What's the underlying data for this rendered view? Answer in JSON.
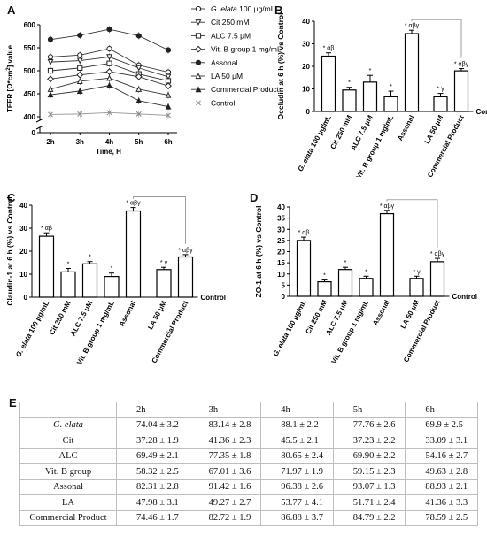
{
  "panel_letters": {
    "a": "A",
    "b": "B",
    "c": "C",
    "d": "D",
    "e": "E"
  },
  "chart_data": [
    {
      "id": "A",
      "type": "line",
      "ylabel_parts": [
        "TEER [",
        "Ω",
        "*cm",
        "2",
        "] value"
      ],
      "xlabel": "Time, H",
      "categories": [
        "2h",
        "3h",
        "4h",
        "5h",
        "6h"
      ],
      "ylim": [
        400,
        600
      ],
      "yticks": [
        "400",
        "450",
        "500",
        "550",
        "600"
      ],
      "ybreak_tick": "0",
      "series": [
        {
          "name": "G. elata 100 μg/mL",
          "name_italic": "G. elata",
          "name_rest": " 100 μg/mL",
          "marker": "open-circle",
          "values": [
            530,
            534,
            548,
            512,
            497
          ]
        },
        {
          "name": "Cit 250 mM",
          "marker": "open-triangle-down",
          "values": [
            519,
            522,
            530,
            506,
            487
          ]
        },
        {
          "name": "ALC 7.5 μM",
          "marker": "open-square",
          "values": [
            500,
            506,
            516,
            493,
            478
          ]
        },
        {
          "name": "Vit. B group 1 mg/mL",
          "marker": "open-diamond",
          "values": [
            482,
            491,
            498,
            487,
            467
          ]
        },
        {
          "name": "Assonal",
          "marker": "filled-circle",
          "values": [
            568,
            577,
            590,
            576,
            545
          ]
        },
        {
          "name": "LA 50 μM",
          "marker": "open-triangle-up",
          "values": [
            460,
            477,
            484,
            460,
            447
          ]
        },
        {
          "name": "Commercial Product",
          "marker": "filled-triangle-up",
          "values": [
            448,
            456,
            468,
            435,
            422
          ]
        },
        {
          "name": "Control",
          "marker": "x",
          "values": [
            405,
            406,
            409,
            406,
            403
          ]
        }
      ]
    },
    {
      "id": "B",
      "type": "bar",
      "ylabel": "Occludin at 6 h (%) vs Control",
      "baseline_label": "Control",
      "ylim": [
        0,
        40
      ],
      "yticks": [
        "0",
        "10",
        "20",
        "30",
        "40"
      ],
      "categories": [
        "G. elata 100 μg/mL",
        "Cit 250 mM",
        "ALC 7.5 μM",
        "Vit. B group 1 mg/mL",
        "Assonal",
        "LA 50 μM",
        "Commercial Product"
      ],
      "values": [
        24.5,
        9.5,
        13,
        6.5,
        34.5,
        6.5,
        18
      ],
      "errors": [
        1.5,
        1.2,
        3,
        2.5,
        1.5,
        1.5,
        1
      ],
      "annotations": [
        "* αβ",
        "*",
        "*",
        "*",
        "* αβγ",
        "* γ",
        "* αβγ"
      ]
    },
    {
      "id": "C",
      "type": "bar",
      "ylabel": "Claudin-1 at 6 h (%) vs Control",
      "baseline_label": "Control",
      "ylim": [
        0,
        40
      ],
      "yticks": [
        "0",
        "10",
        "20",
        "30",
        "40"
      ],
      "categories": [
        "G. elata 100 μg/mL",
        "Cit 250 mM",
        "ALC 7.5 μM",
        "Vit. B group 1 mg/mL",
        "Assonal",
        "LA 50 μM",
        "Commercial Product"
      ],
      "values": [
        26.5,
        11,
        14.5,
        9,
        37.5,
        12,
        17.5
      ],
      "errors": [
        1.5,
        1.5,
        1,
        1.5,
        1.5,
        1,
        1
      ],
      "annotations": [
        "* αβ",
        "*",
        "*",
        "*",
        "* αβγ",
        "* γ",
        "* αβγ"
      ]
    },
    {
      "id": "D",
      "type": "bar",
      "ylabel": "ZO-1 at 6 h (%) vs Control",
      "baseline_label": "Control",
      "ylim": [
        0,
        40
      ],
      "yticks": [
        "0",
        "5",
        "10",
        "15",
        "20",
        "25",
        "30",
        "35",
        "40"
      ],
      "categories": [
        "G. elata 100 μg/mL",
        "Cit 250 mM",
        "ALC 7.5 μM",
        "Vit. B group 1 mg/mL",
        "Assonal",
        "LA 50 μM",
        "Commercial Product"
      ],
      "values": [
        25,
        6.5,
        12,
        8,
        37,
        8,
        15.5
      ],
      "errors": [
        1.5,
        0.8,
        1,
        1,
        1.5,
        1,
        1.5
      ],
      "annotations": [
        "* αβ",
        "*",
        "*",
        "*",
        "* αβγ",
        "* γ",
        "* αβγ"
      ]
    },
    {
      "id": "E",
      "type": "table",
      "columns": [
        "",
        "2h",
        "3h",
        "4h",
        "5h",
        "6h"
      ],
      "rows": [
        {
          "label": "G. elata",
          "italic": true,
          "cells": [
            "74.04 ± 3.2",
            "83.14 ± 2.8",
            "88.1 ± 2.2",
            "77.76 ± 2.6",
            "69.9 ± 2.5"
          ]
        },
        {
          "label": "Cit",
          "italic": false,
          "cells": [
            "37.28 ± 1.9",
            "41.36 ± 2.3",
            "45.5 ± 2.1",
            "37.23 ± 2.2",
            "33.09 ± 3.1"
          ]
        },
        {
          "label": "ALC",
          "italic": false,
          "cells": [
            "69.49 ± 2.1",
            "77.35 ± 1.8",
            "80.65 ± 2.4",
            "69.90 ± 2.2",
            "54.16 ± 2.7"
          ]
        },
        {
          "label": "Vit. B group",
          "italic": false,
          "cells": [
            "58.32 ± 2.5",
            "67.01 ± 3.6",
            "71.97 ± 1.9",
            "59.15 ± 2.3",
            "49.63 ± 2.8"
          ]
        },
        {
          "label": "Assonal",
          "italic": false,
          "cells": [
            "82.31 ± 2.8",
            "91.42 ± 1.6",
            "96.38 ± 2.6",
            "93.07 ± 1.3",
            "88.93 ± 2.1"
          ]
        },
        {
          "label": "LA",
          "italic": false,
          "cells": [
            "47.98 ± 3.1",
            "49.27 ± 2.7",
            "53.77 ± 4.1",
            "51.71 ± 2.4",
            "41.36 ± 3.3"
          ]
        },
        {
          "label": "Commercial Product",
          "italic": false,
          "cells": [
            "74.46 ± 1.7",
            "82.72 ± 1.9",
            "86.88 ± 3.7",
            "84.79 ± 2.2",
            "78.59 ± 2.5"
          ]
        }
      ]
    }
  ]
}
